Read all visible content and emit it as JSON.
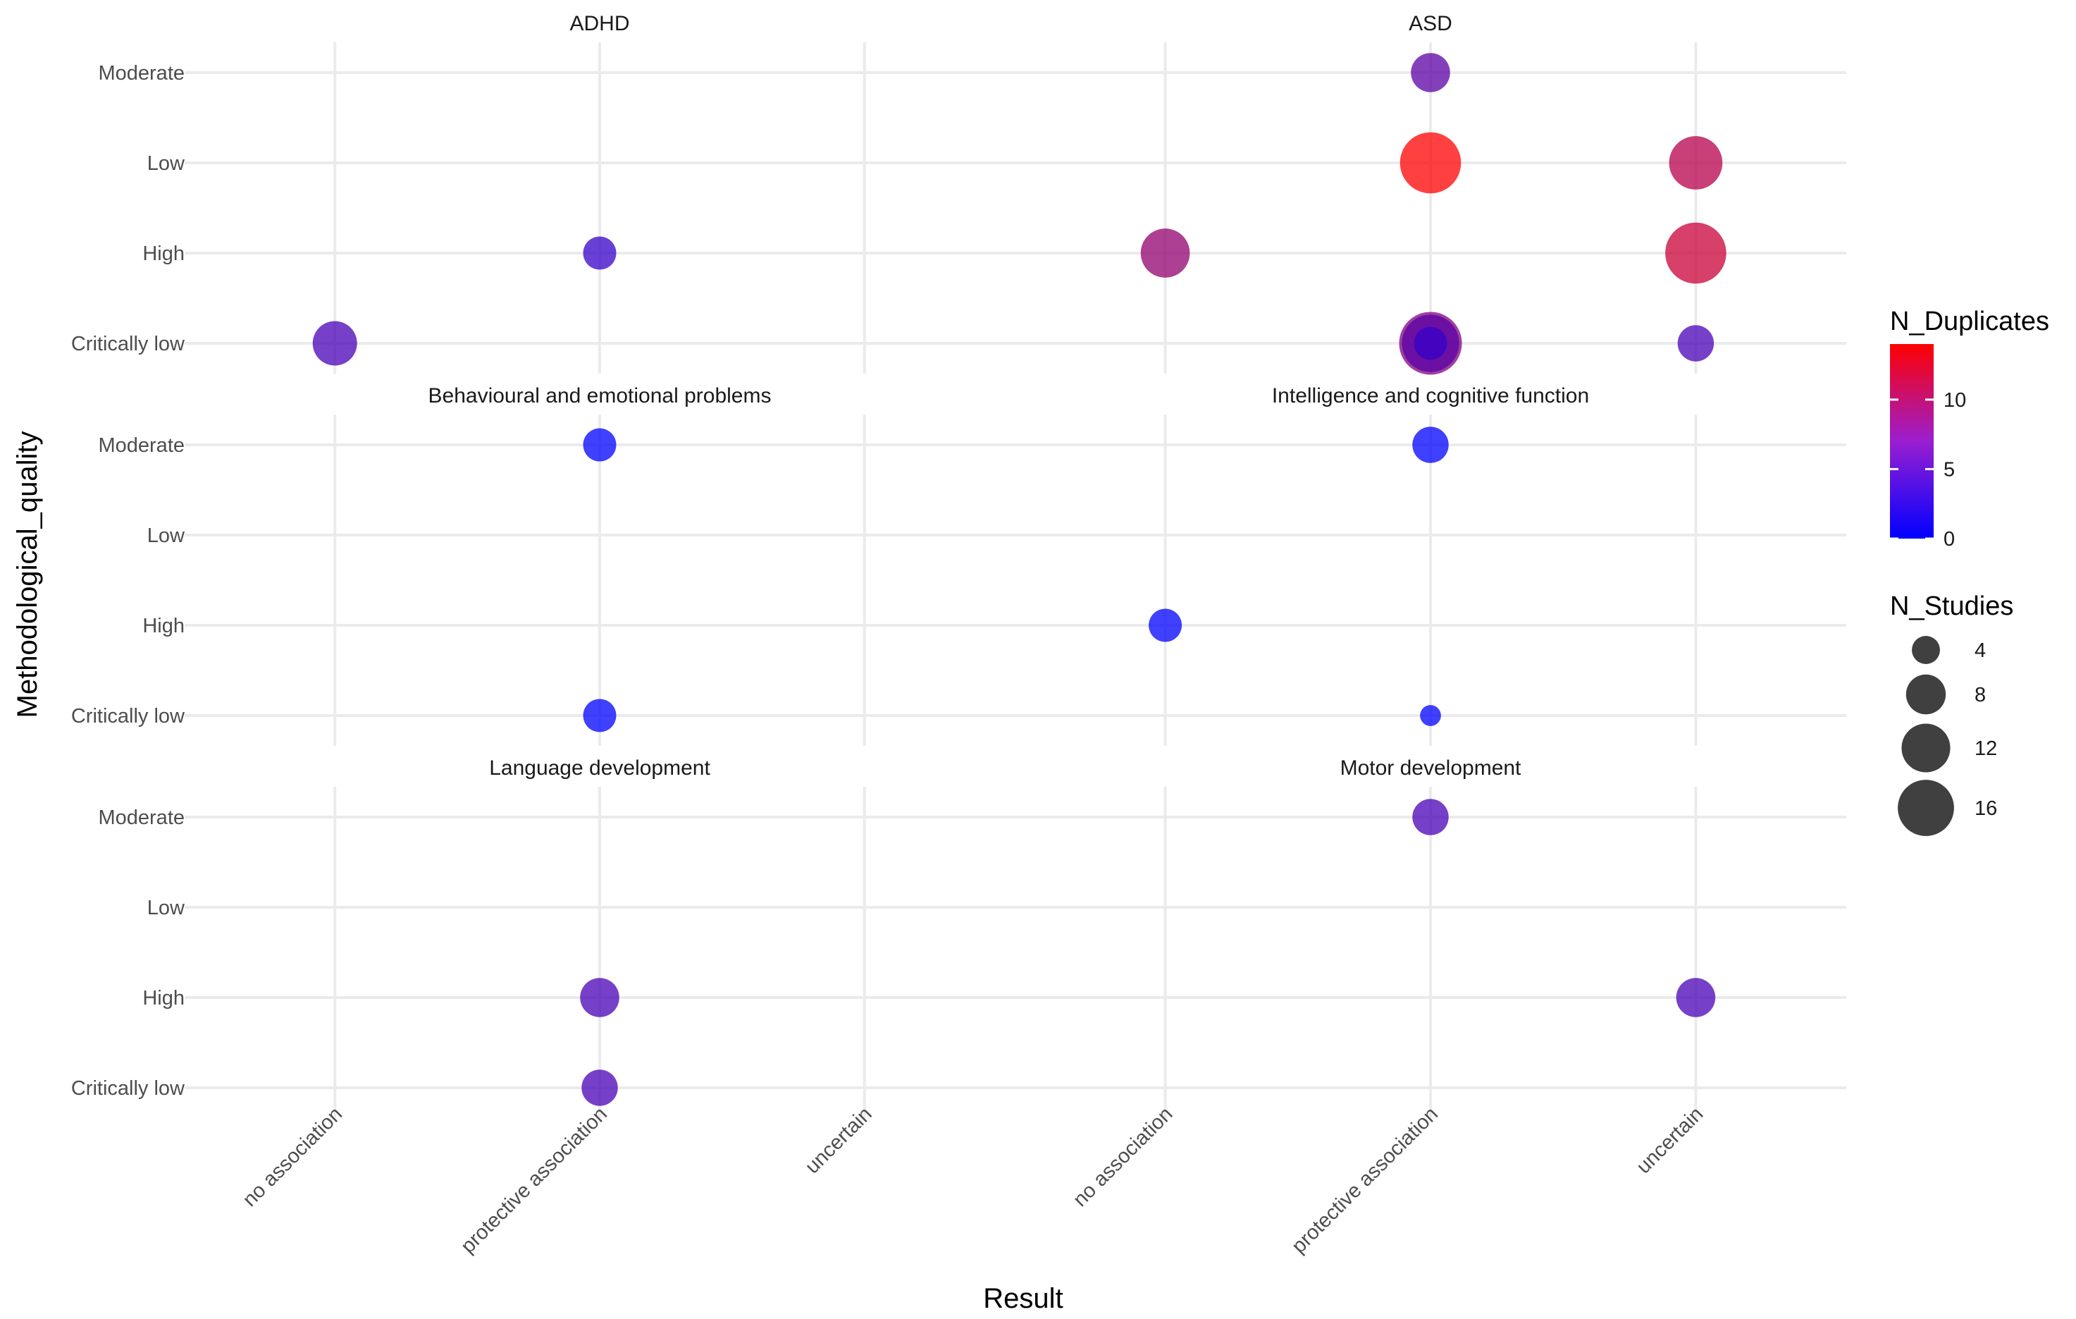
{
  "chart_data": {
    "type": "scatter",
    "x_axis_label": "Result",
    "y_axis_label": "Methodological_quality",
    "x_categories": [
      "no association",
      "protective association",
      "uncertain"
    ],
    "y_categories": [
      "Critically low",
      "High",
      "Low",
      "Moderate"
    ],
    "grid": true,
    "legend_placement": "right",
    "color_legend": {
      "title": "N_Duplicates",
      "low_color": "#0000FF",
      "high_color": "#FF0000",
      "min": 0,
      "max": 14,
      "breaks": [
        0,
        5,
        10
      ]
    },
    "size_legend": {
      "title": "N_Studies",
      "breaks": [
        4,
        8,
        12,
        16
      ]
    },
    "panels": [
      {
        "title": "ADHD",
        "points": [
          {
            "x": "no association",
            "y": "Critically low",
            "n_studies": 9,
            "n_duplicates": 4
          },
          {
            "x": "protective association",
            "y": "High",
            "n_studies": 5,
            "n_duplicates": 3
          }
        ]
      },
      {
        "title": "ASD",
        "points": [
          {
            "x": "protective association",
            "y": "Moderate",
            "n_studies": 7,
            "n_duplicates": 5
          },
          {
            "x": "protective association",
            "y": "Low",
            "n_studies": 17,
            "n_duplicates": 14
          },
          {
            "x": "uncertain",
            "y": "Low",
            "n_studies": 13,
            "n_duplicates": 10
          },
          {
            "x": "no association",
            "y": "High",
            "n_studies": 11,
            "n_duplicates": 8
          },
          {
            "x": "uncertain",
            "y": "High",
            "n_studies": 17,
            "n_duplicates": 11
          },
          {
            "x": "protective association",
            "y": "Critically low",
            "n_studies": 18,
            "n_duplicates": 7
          },
          {
            "x": "protective association",
            "y": "Critically low",
            "n_studies": 15,
            "n_duplicates": 5
          },
          {
            "x": "protective association",
            "y": "Critically low",
            "n_studies": 5,
            "n_duplicates": 3
          },
          {
            "x": "uncertain",
            "y": "Critically low",
            "n_studies": 6,
            "n_duplicates": 4
          }
        ]
      },
      {
        "title": "Behavioural and emotional problems",
        "points": [
          {
            "x": "protective association",
            "y": "Moderate",
            "n_studies": 5,
            "n_duplicates": 0
          },
          {
            "x": "protective association",
            "y": "Critically low",
            "n_studies": 5,
            "n_duplicates": 0
          }
        ]
      },
      {
        "title": "Intelligence and cognitive function",
        "points": [
          {
            "x": "protective association",
            "y": "Moderate",
            "n_studies": 6,
            "n_duplicates": 0
          },
          {
            "x": "no association",
            "y": "High",
            "n_studies": 5,
            "n_duplicates": 0
          },
          {
            "x": "protective association",
            "y": "Critically low",
            "n_studies": 2,
            "n_duplicates": 0
          }
        ]
      },
      {
        "title": "Language development",
        "points": [
          {
            "x": "protective association",
            "y": "High",
            "n_studies": 7,
            "n_duplicates": 4
          },
          {
            "x": "protective association",
            "y": "Critically low",
            "n_studies": 6,
            "n_duplicates": 4
          }
        ]
      },
      {
        "title": "Motor development",
        "points": [
          {
            "x": "protective association",
            "y": "Moderate",
            "n_studies": 6,
            "n_duplicates": 4
          },
          {
            "x": "uncertain",
            "y": "High",
            "n_studies": 7,
            "n_duplicates": 4
          }
        ]
      }
    ]
  }
}
